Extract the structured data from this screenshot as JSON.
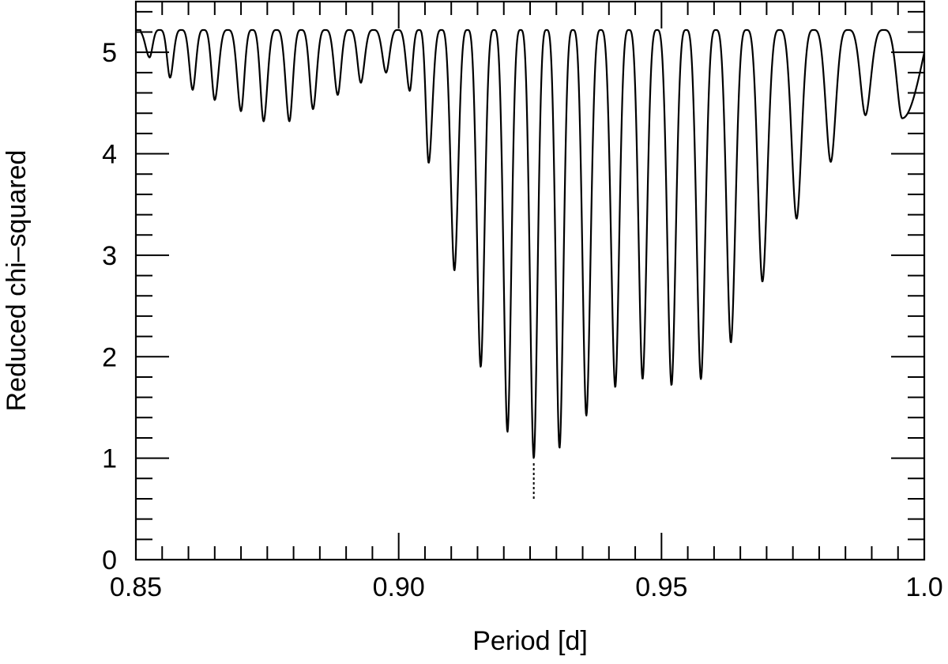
{
  "chart_data": {
    "type": "line",
    "title": "",
    "xlabel": "Period [d]",
    "ylabel": "Reduced chi–squared",
    "xlim": [
      0.85,
      1.0
    ],
    "ylim": [
      0,
      5.5
    ],
    "x_ticks": [
      {
        "value": 0.85,
        "label": "0.85"
      },
      {
        "value": 0.9,
        "label": "0.90"
      },
      {
        "value": 0.95,
        "label": "0.95"
      },
      {
        "value": 1.0,
        "label": "1.0"
      }
    ],
    "x_minor_step": 0.005,
    "y_ticks": [
      {
        "value": 0,
        "label": "0"
      },
      {
        "value": 1,
        "label": "1"
      },
      {
        "value": 2,
        "label": "2"
      },
      {
        "value": 3,
        "label": "3"
      },
      {
        "value": 4,
        "label": "4"
      },
      {
        "value": 5,
        "label": "5"
      }
    ],
    "y_minor_step": 0.2,
    "grid": false,
    "legend": "none",
    "peak_level": 5.22,
    "series": [
      {
        "color": "#000000",
        "minima": [
          [
            0.8526,
            4.95
          ],
          [
            0.8565,
            4.75
          ],
          [
            0.8608,
            4.63
          ],
          [
            0.865,
            4.53
          ],
          [
            0.87,
            4.42
          ],
          [
            0.8743,
            4.32
          ],
          [
            0.8792,
            4.32
          ],
          [
            0.8837,
            4.44
          ],
          [
            0.8884,
            4.58
          ],
          [
            0.8928,
            4.7
          ],
          [
            0.8976,
            4.8
          ],
          [
            0.9021,
            4.62
          ],
          [
            0.9057,
            3.91
          ],
          [
            0.9106,
            2.85
          ],
          [
            0.9156,
            1.9
          ],
          [
            0.9207,
            1.26
          ],
          [
            0.9257,
            1.0
          ],
          [
            0.9306,
            1.1
          ],
          [
            0.9357,
            1.42
          ],
          [
            0.9412,
            1.7
          ],
          [
            0.9464,
            1.78
          ],
          [
            0.9519,
            1.72
          ],
          [
            0.9575,
            1.78
          ],
          [
            0.9632,
            2.14
          ],
          [
            0.9692,
            2.74
          ],
          [
            0.9757,
            3.36
          ],
          [
            0.9822,
            3.92
          ],
          [
            0.9888,
            4.38
          ],
          [
            0.9958,
            4.35
          ]
        ],
        "end_point": [
          1.0,
          5.0
        ]
      }
    ],
    "annotations": [
      {
        "type": "dotted-vline",
        "x": 0.9257,
        "y_from": 0.6,
        "y_to": 0.95
      }
    ]
  }
}
